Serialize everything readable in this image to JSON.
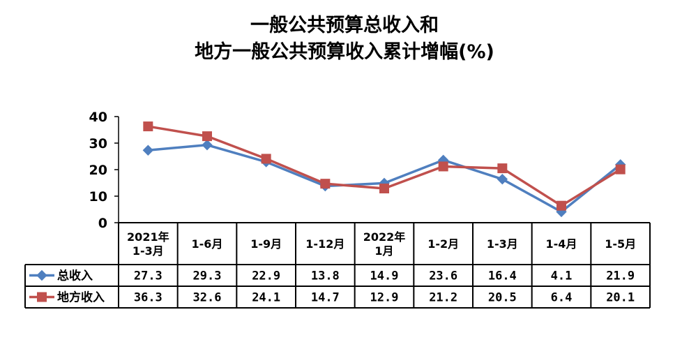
{
  "title_lines": [
    "一般公共预算总收入和",
    "地方一般公共预算收入累计增幅(%)"
  ],
  "colors": {
    "series_total": "#4F7FBF",
    "series_local": "#C0504D",
    "grid": "#000000"
  },
  "chart_data": {
    "type": "line",
    "title": "一般公共预算总收入和地方一般公共预算收入累计增幅(%)",
    "categories": [
      "2021年\n1-3月",
      "1-6月",
      "1-9月",
      "1-12月",
      "2022年\n1月",
      "1-2月",
      "1-3月",
      "1-4月",
      "1-5月"
    ],
    "ylim": [
      0,
      40
    ],
    "yticks": [
      0,
      10,
      20,
      30,
      40
    ],
    "series": [
      {
        "name": "总收入",
        "marker": "diamond",
        "values_text": [
          "27.3",
          "29.3",
          "22.9",
          "13.8",
          "14.9",
          "23.6",
          "16.4",
          "4.1",
          "21.9"
        ],
        "values": [
          27.3,
          29.3,
          22.9,
          13.8,
          14.9,
          23.6,
          16.4,
          4.1,
          21.9
        ]
      },
      {
        "name": "地方收入",
        "marker": "square",
        "values_text": [
          "36.3",
          "32.6",
          "24.1",
          "14.7",
          "12.9",
          "21.2",
          "20.5",
          "6.4",
          "20.1"
        ],
        "values": [
          36.3,
          32.6,
          24.1,
          14.7,
          12.9,
          21.2,
          20.5,
          6.4,
          20.1
        ]
      }
    ],
    "grid": false,
    "legend": "data-table-left"
  }
}
